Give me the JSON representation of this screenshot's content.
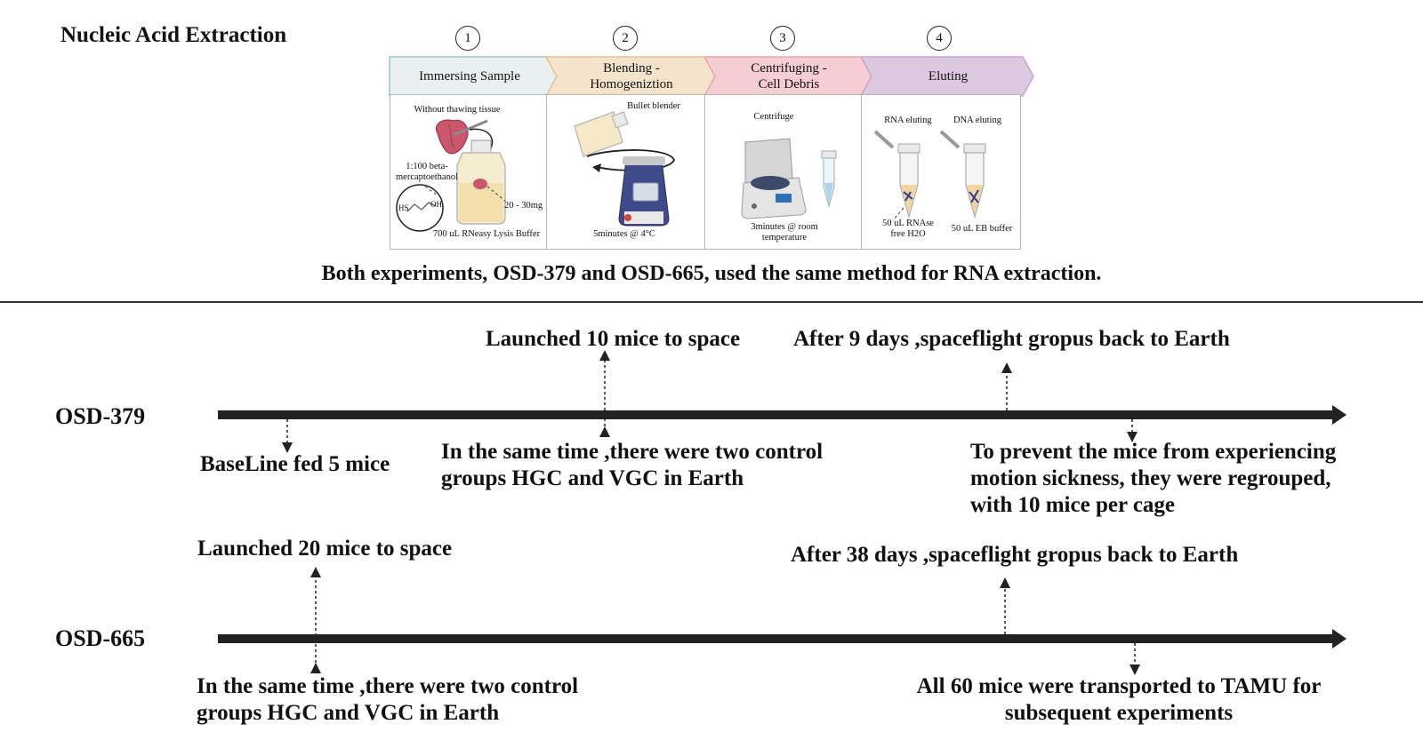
{
  "header": {
    "title": "Nucleic Acid Extraction"
  },
  "steps": [
    {
      "num": "1",
      "label": "Immersing Sample",
      "color": "#e8f0f0"
    },
    {
      "num": "2",
      "label_lines": [
        "Blending -",
        "Homogeniztion"
      ],
      "color": "#f5e3cc"
    },
    {
      "num": "3",
      "label_lines": [
        "Centrifuging -",
        "Cell Debris"
      ],
      "color": "#f6cdd3"
    },
    {
      "num": "4",
      "label": "Eluting",
      "color": "#dcc9e0"
    }
  ],
  "panel1": {
    "top": "Without thawing tissue",
    "ratio_lines": [
      "1:100 beta-",
      "mercaptoethanol"
    ],
    "mass": "20 - 30mg",
    "buffer": "700 uL RNeasy Lysis Buffer",
    "hs": "HS",
    "oh": "OH"
  },
  "panel2": {
    "top": "Bullet blender",
    "bottom": "5minutes @ 4°C"
  },
  "panel3": {
    "top": "Centrifuge",
    "bottom_lines": [
      "3minutes @ room",
      "temperature"
    ]
  },
  "panel4": {
    "rna": "RNA eluting",
    "dna": "DNA eluting",
    "rna_bottom_lines": [
      "50 uL RNAse",
      "free H2O"
    ],
    "dna_bottom": "50 uL EB buffer"
  },
  "caption": "Both experiments, OSD-379 and OSD-665, used the same method for RNA extraction.",
  "timeline1": {
    "label": "OSD-379",
    "launch": "Launched 10 mice to space",
    "return": "After 9 days ,spaceflight gropus back to Earth",
    "baseline": "BaseLine fed 5 mice",
    "control_lines": [
      "In the same time ,there were two control",
      "groups HGC and VGC in Earth"
    ],
    "prevent_lines": [
      "To prevent the mice from experiencing",
      "motion sickness, they were regrouped,",
      "with 10 mice per cage"
    ]
  },
  "timeline2": {
    "label": "OSD-665",
    "launch": "Launched 20 mice to space",
    "return": "After 38 days ,spaceflight gropus back to Earth",
    "control_lines": [
      "In the same time ,there were two control",
      "groups HGC and VGC in Earth"
    ],
    "transport_lines": [
      "All 60 mice were transported to TAMU for",
      "subsequent experiments"
    ]
  }
}
